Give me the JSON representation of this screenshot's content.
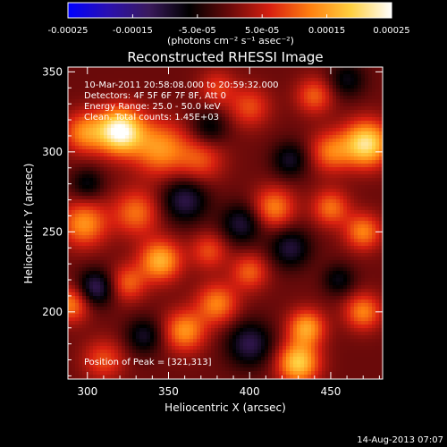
{
  "colorbar": {
    "colormap": [
      "#0000ff",
      "#2a10b0",
      "#3a1a5c",
      "#000000",
      "#6a0a0a",
      "#d82010",
      "#ff8010",
      "#ffd040",
      "#ffffff"
    ],
    "tick_labels": [
      "-0.00025",
      "-0.00015",
      "-5.0e-05",
      "5.0e-05",
      "0.00015",
      "0.00025"
    ],
    "tick_values": [
      -0.00025,
      -0.00015,
      -5e-05,
      5e-05,
      0.00015,
      0.00025
    ],
    "range": [
      -0.00025,
      0.00025
    ],
    "unit_label": "(photons cm⁻² s⁻¹ asec⁻²)"
  },
  "chart_data": {
    "type": "heatmap",
    "title": "Reconstructed RHESSI Image",
    "xlabel": "Heliocentric X (arcsec)",
    "ylabel": "Heliocentric Y (arcsec)",
    "xlim": [
      288,
      482
    ],
    "ylim": [
      158,
      353
    ],
    "x_ticks": [
      300,
      350,
      400,
      450
    ],
    "y_ticks": [
      200,
      250,
      300,
      350
    ],
    "x_tick_labels": [
      "300",
      "350",
      "400",
      "450"
    ],
    "y_tick_labels": [
      "200",
      "250",
      "300",
      "350"
    ],
    "annotations": [
      "10-Mar-2011 20:58:08.000 to 20:59:32.000",
      "Detectors: 4F 5F 6F 7F 8F, Att 0",
      "Energy Range: 25.0 - 50.0 keV",
      "Clean. Total counts: 1.45E+03"
    ],
    "peak_label": "Position of Peak = [321,313]",
    "peak": [
      321,
      313
    ],
    "sources": [
      {
        "x": 320,
        "y": 313,
        "amp": 1.0,
        "sigma": 10
      },
      {
        "x": 345,
        "y": 302,
        "amp": 0.55,
        "sigma": 12
      },
      {
        "x": 298,
        "y": 312,
        "amp": 0.5,
        "sigma": 9
      },
      {
        "x": 370,
        "y": 295,
        "amp": 0.35,
        "sigma": 10
      },
      {
        "x": 472,
        "y": 305,
        "amp": 0.85,
        "sigma": 10
      },
      {
        "x": 450,
        "y": 300,
        "amp": 0.45,
        "sigma": 9
      },
      {
        "x": 400,
        "y": 328,
        "amp": 0.35,
        "sigma": 9
      },
      {
        "x": 440,
        "y": 335,
        "amp": 0.4,
        "sigma": 8
      },
      {
        "x": 380,
        "y": 340,
        "amp": 0.3,
        "sigma": 8
      },
      {
        "x": 298,
        "y": 255,
        "amp": 0.55,
        "sigma": 10
      },
      {
        "x": 330,
        "y": 262,
        "amp": 0.45,
        "sigma": 10
      },
      {
        "x": 345,
        "y": 232,
        "amp": 0.65,
        "sigma": 9
      },
      {
        "x": 375,
        "y": 238,
        "amp": 0.35,
        "sigma": 8
      },
      {
        "x": 415,
        "y": 265,
        "amp": 0.5,
        "sigma": 9
      },
      {
        "x": 450,
        "y": 265,
        "amp": 0.45,
        "sigma": 8
      },
      {
        "x": 470,
        "y": 250,
        "amp": 0.5,
        "sigma": 8
      },
      {
        "x": 400,
        "y": 225,
        "amp": 0.4,
        "sigma": 8
      },
      {
        "x": 380,
        "y": 205,
        "amp": 0.5,
        "sigma": 9
      },
      {
        "x": 360,
        "y": 188,
        "amp": 0.55,
        "sigma": 9
      },
      {
        "x": 435,
        "y": 190,
        "amp": 0.6,
        "sigma": 8
      },
      {
        "x": 430,
        "y": 168,
        "amp": 0.75,
        "sigma": 9
      },
      {
        "x": 470,
        "y": 200,
        "amp": 0.5,
        "sigma": 8
      },
      {
        "x": 290,
        "y": 205,
        "amp": 0.5,
        "sigma": 8
      },
      {
        "x": 325,
        "y": 218,
        "amp": 0.4,
        "sigma": 8
      },
      {
        "x": 310,
        "y": 170,
        "amp": 0.35,
        "sigma": 9
      },
      {
        "x": 305,
        "y": 215,
        "amp": -0.5,
        "sigma": 8
      },
      {
        "x": 360,
        "y": 270,
        "amp": -0.45,
        "sigma": 10
      },
      {
        "x": 395,
        "y": 255,
        "amp": -0.4,
        "sigma": 9
      },
      {
        "x": 425,
        "y": 240,
        "amp": -0.4,
        "sigma": 9
      },
      {
        "x": 425,
        "y": 295,
        "amp": -0.35,
        "sigma": 8
      },
      {
        "x": 375,
        "y": 315,
        "amp": -0.3,
        "sigma": 8
      },
      {
        "x": 400,
        "y": 180,
        "amp": -0.45,
        "sigma": 10
      },
      {
        "x": 335,
        "y": 185,
        "amp": -0.35,
        "sigma": 8
      },
      {
        "x": 455,
        "y": 220,
        "amp": -0.3,
        "sigma": 7
      },
      {
        "x": 460,
        "y": 345,
        "amp": -0.3,
        "sigma": 8
      },
      {
        "x": 300,
        "y": 280,
        "amp": -0.3,
        "sigma": 7
      }
    ]
  },
  "footer": {
    "timestamp": "14-Aug-2013 07:07"
  }
}
